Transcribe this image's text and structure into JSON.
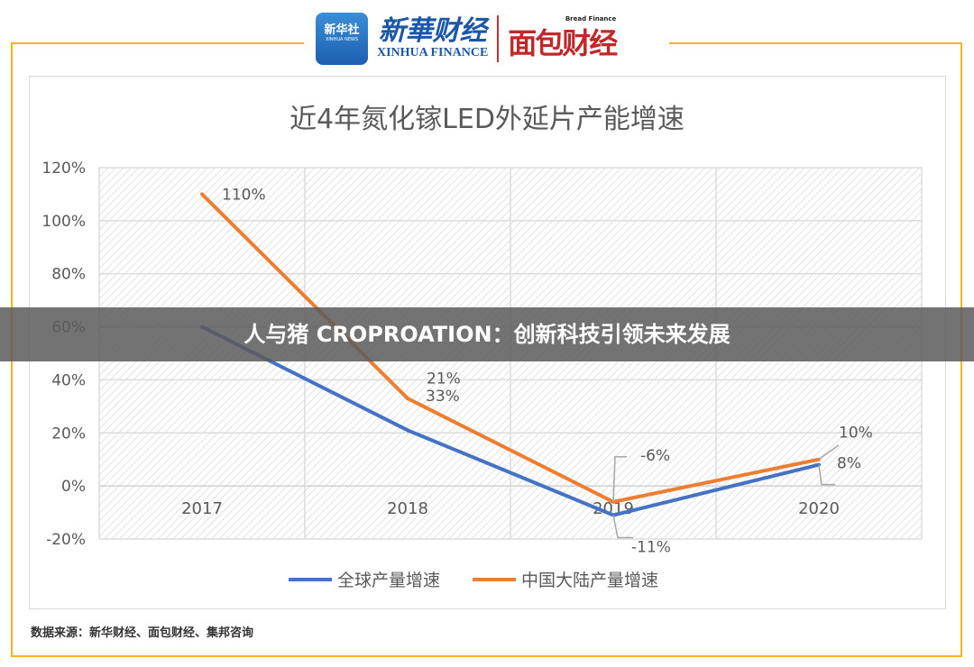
{
  "logos": {
    "xinhua_news": "新华社",
    "xinhua_news_en": "XINHUA NEWS",
    "xinhua_finance": "新華财经",
    "xinhua_finance_en": "XINHUA FINANCE",
    "bread_finance": "面包财经",
    "bread_finance_en": "Bread Finance"
  },
  "banner": "人与猪 CROPROATION：创新科技引领未来发展",
  "source": "数据来源：新华财经、面包财经、集邦咨询",
  "chart_data": {
    "type": "line",
    "title": "近4年氮化镓LED外延片产能增速",
    "categories": [
      "2017",
      "2018",
      "2019",
      "2020"
    ],
    "ylim": [
      -20,
      120
    ],
    "yticks": [
      -20,
      0,
      20,
      40,
      60,
      80,
      100,
      120
    ],
    "ytick_labels": [
      "-20%",
      "0%",
      "20%",
      "40%",
      "60%",
      "80%",
      "100%",
      "120%"
    ],
    "grid": true,
    "legend_position": "bottom",
    "series": [
      {
        "name": "全球产量增速",
        "color": "#4472c4",
        "values": [
          60,
          21,
          -11,
          8
        ],
        "labels": [
          null,
          "21%",
          "-11%",
          "8%"
        ]
      },
      {
        "name": "中国大陆产量增速",
        "color": "#ed7d31",
        "values": [
          110,
          33,
          -6,
          10
        ],
        "labels": [
          "110%",
          "33%",
          "-6%",
          "10%"
        ]
      }
    ]
  }
}
